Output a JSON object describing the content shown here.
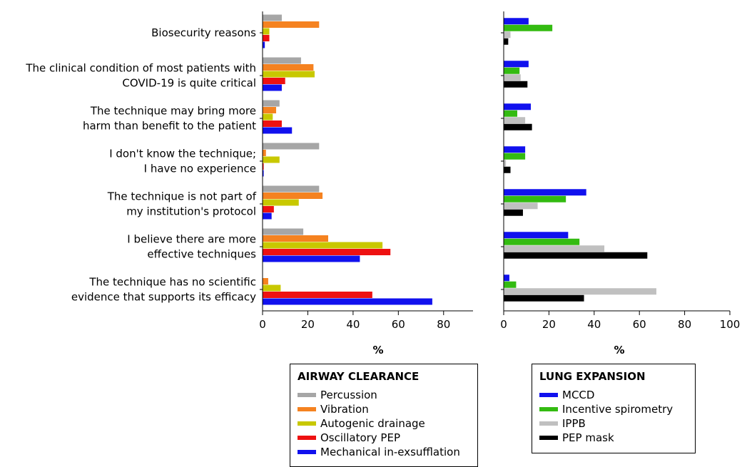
{
  "chart_data": [
    {
      "type": "bar",
      "orientation": "horizontal",
      "legend_title": "AIRWAY CLEARANCE",
      "categories": [
        [
          "Biosecurity reasons"
        ],
        [
          "The clinical condition of most patients with",
          "COVID-19 is quite critical"
        ],
        [
          "The technique may bring more",
          "harm than benefit to the patient"
        ],
        [
          "I don't know the technique;",
          "I have no experience"
        ],
        [
          "The technique is not part of",
          "my institution's protocol"
        ],
        [
          "I believe there are more",
          "effective techniques"
        ],
        [
          "The technique has no scientific",
          "evidence that supports its efficacy"
        ]
      ],
      "series": [
        {
          "name": "Percussion",
          "color": "#a6a6a6",
          "values": [
            8.5,
            17,
            7.5,
            25,
            25,
            18,
            0
          ]
        },
        {
          "name": "Vibration",
          "color": "#f58220",
          "values": [
            25,
            22.5,
            6,
            1.5,
            26.5,
            29,
            2.5
          ]
        },
        {
          "name": "Autogenic drainage",
          "color": "#c8c800",
          "values": [
            3,
            23,
            4.5,
            7.5,
            16,
            53,
            8
          ]
        },
        {
          "name": "Oscillatory PEP",
          "color": "#ee1111",
          "values": [
            3,
            10,
            8.5,
            0.5,
            5,
            56.5,
            48.5
          ]
        },
        {
          "name": "Mechanical in-exsufflation",
          "color": "#1111ee",
          "values": [
            1,
            8.5,
            13,
            0.5,
            4,
            43,
            75
          ]
        }
      ],
      "xlim": [
        0,
        93
      ],
      "xticks": [
        0,
        20,
        40,
        60,
        80
      ],
      "xlabel": "%",
      "legend": "below"
    },
    {
      "type": "bar",
      "orientation": "horizontal",
      "legend_title": "LUNG EXPANSION",
      "series": [
        {
          "name": "MCCD",
          "color": "#1111ee",
          "values": [
            11,
            11,
            12,
            9.5,
            36.5,
            28.5,
            2.5
          ]
        },
        {
          "name": "Incentive spirometry",
          "color": "#33bb11",
          "values": [
            21.5,
            7,
            6,
            9.5,
            27.5,
            33.5,
            5.5
          ]
        },
        {
          "name": "IPPB",
          "color": "#c0c0c0",
          "values": [
            3,
            7.5,
            9.5,
            1,
            15,
            44.5,
            67.5
          ]
        },
        {
          "name": "PEP mask",
          "color": "#000000",
          "values": [
            2,
            10.5,
            12.5,
            3,
            8.5,
            63.5,
            35.5
          ]
        }
      ],
      "xlim": [
        0,
        100
      ],
      "xticks": [
        0,
        20,
        40,
        60,
        80,
        100
      ],
      "xlabel": "%",
      "legend": "below"
    }
  ]
}
